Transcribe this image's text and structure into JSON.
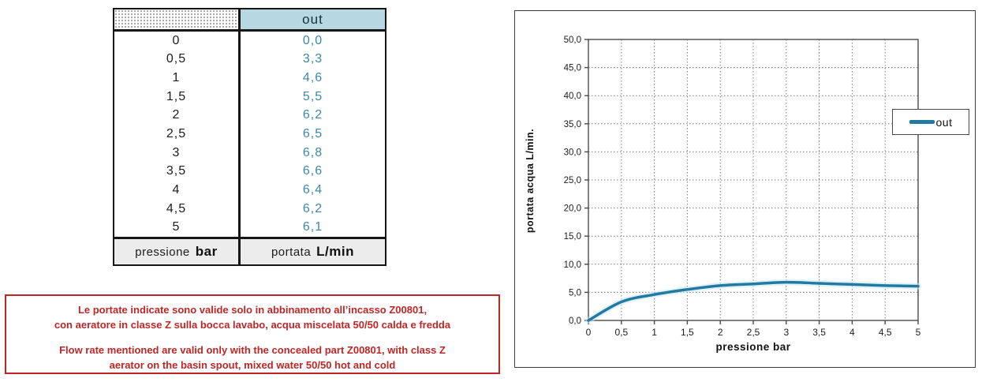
{
  "table": {
    "header": {
      "left": "",
      "right": "out"
    },
    "rows": [
      {
        "pressure": "0",
        "flow": "0,0"
      },
      {
        "pressure": "0,5",
        "flow": "3,3"
      },
      {
        "pressure": "1",
        "flow": "4,6"
      },
      {
        "pressure": "1,5",
        "flow": "5,5"
      },
      {
        "pressure": "2",
        "flow": "6,2"
      },
      {
        "pressure": "2,5",
        "flow": "6,5"
      },
      {
        "pressure": "3",
        "flow": "6,8"
      },
      {
        "pressure": "3,5",
        "flow": "6,6"
      },
      {
        "pressure": "4",
        "flow": "6,4"
      },
      {
        "pressure": "4,5",
        "flow": "6,2"
      },
      {
        "pressure": "5",
        "flow": "6,1"
      }
    ],
    "footer": {
      "left_label": "pressione",
      "left_unit": "bar",
      "right_label": "portata",
      "right_unit": "L/min"
    }
  },
  "warning": {
    "line1_it": "Le portate indicate sono valide solo in abbinamento all’incasso Z00801,",
    "line2_it": "con aeratore in classe Z sulla bocca lavabo, acqua miscelata 50/50 calda e fredda",
    "line1_en": "Flow rate mentioned are valid only with the concealed part Z00801, with class Z",
    "line2_en": "aerator on the basin spout, mixed water 50/50 hot and cold",
    "accent_color": "#bf2626"
  },
  "chart_data": {
    "type": "line",
    "x": [
      0,
      0.5,
      1,
      1.5,
      2,
      2.5,
      3,
      3.5,
      4,
      4.5,
      5
    ],
    "series": [
      {
        "name": "out",
        "values": [
          0.0,
          3.3,
          4.6,
          5.5,
          6.2,
          6.5,
          6.8,
          6.6,
          6.4,
          6.2,
          6.1
        ],
        "color": "#2279a2",
        "halo_color": "#c9e7f4"
      }
    ],
    "title": "",
    "xlabel": "pressione bar",
    "ylabel": "portata acqua  L/min.",
    "xlim": [
      0,
      5
    ],
    "ylim": [
      0,
      50
    ],
    "x_tick_labels": [
      "0",
      "0,5",
      "1",
      "1,5",
      "2",
      "2,5",
      "3",
      "3,5",
      "4",
      "4,5",
      "5"
    ],
    "y_tick_labels": [
      "0,0",
      "5,0",
      "10,0",
      "15,0",
      "20,0",
      "25,0",
      "30,0",
      "35,0",
      "40,0",
      "45,0",
      "50,0"
    ],
    "grid": true,
    "grid_color": "#7f7f7f",
    "axis_color": "#4a4a4a",
    "legend": {
      "label": "out",
      "position": "right"
    }
  }
}
